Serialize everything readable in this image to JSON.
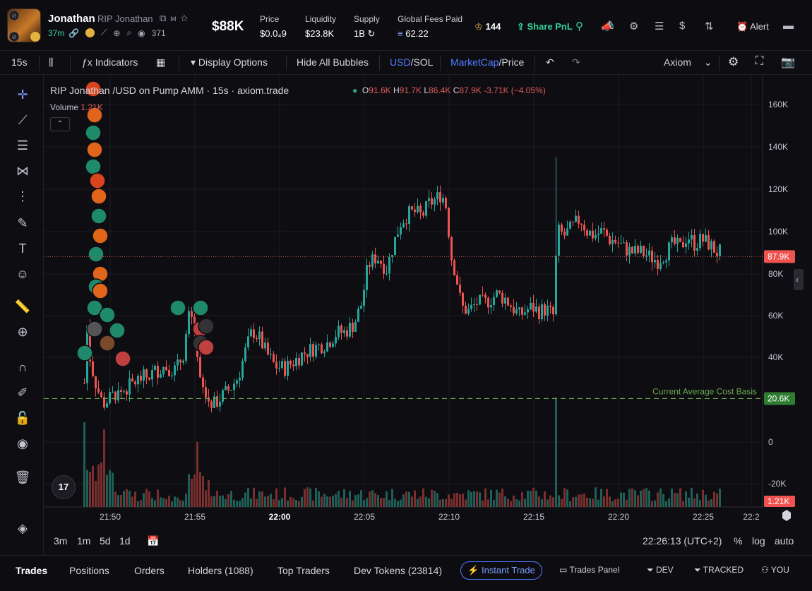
{
  "token": {
    "ticker": "Jonathan",
    "name": "RIP Jonathan",
    "age": "37m",
    "holders_count": "371",
    "market_cap": "$88K"
  },
  "stats": [
    {
      "label": "Price",
      "value": "$0.0₄9"
    },
    {
      "label": "Liquidity",
      "value": "$23.8K"
    },
    {
      "label": "Supply",
      "value": "1B"
    },
    {
      "label": "Global Fees Paid",
      "value": "62.22"
    }
  ],
  "header_actions": {
    "crown_count": "144",
    "share_pnl": "Share PnL",
    "alert": "Alert"
  },
  "toolbar": {
    "interval": "15s",
    "indicators": "Indicators",
    "display_options": "Display Options",
    "hide_bubbles": "Hide All Bubbles",
    "usd": "USD",
    "sol": "/SOL",
    "marketcap": "MarketCap",
    "price": "/Price",
    "axiom": "Axiom"
  },
  "chart_header": {
    "title": "RIP Jonathan /USD on Pump AMM · 15s · axiom.trade",
    "o": "91.6K",
    "h": "91.7K",
    "l": "86.4K",
    "c": "87.9K",
    "change": "-3.71K (−4.05%)",
    "volume_label": "Volume",
    "volume_value": "1.21K",
    "logo": "17"
  },
  "chart_data": {
    "type": "candlestick",
    "title": "RIP Jonathan /USD on Pump AMM · 15s · axiom.trade",
    "x_ticks": [
      "21:50",
      "21:55",
      "22:00",
      "22:05",
      "22:10",
      "22:15",
      "22:20",
      "22:25",
      "22:2"
    ],
    "y_ticks": [
      "160K",
      "140K",
      "120K",
      "100K",
      "80K",
      "60K",
      "40K",
      "0",
      "-20K"
    ],
    "ylim": [
      -30000,
      170000
    ],
    "current_price_label": "87.9K",
    "cost_basis_label": "20.6K",
    "cost_basis_text": "Current Average Cost Basis",
    "volume_label": "1.21K",
    "colors": {
      "up": "#26a69a",
      "down": "#ef5350",
      "cost_basis": "#6aa84f"
    }
  },
  "bottom_bar": {
    "ranges": [
      "3m",
      "1m",
      "5d",
      "1d"
    ],
    "clock": "22:26:13 (UTC+2)",
    "percent": "%",
    "log": "log",
    "auto": "auto"
  },
  "tabs": [
    "Trades",
    "Positions",
    "Orders",
    "Holders (1088)",
    "Top Traders",
    "Dev Tokens (23814)"
  ],
  "tab_right": {
    "instant_trade": "Instant Trade",
    "trades_panel": "Trades Panel",
    "dev": "DEV",
    "tracked": "TRACKED",
    "you": "YOU"
  }
}
